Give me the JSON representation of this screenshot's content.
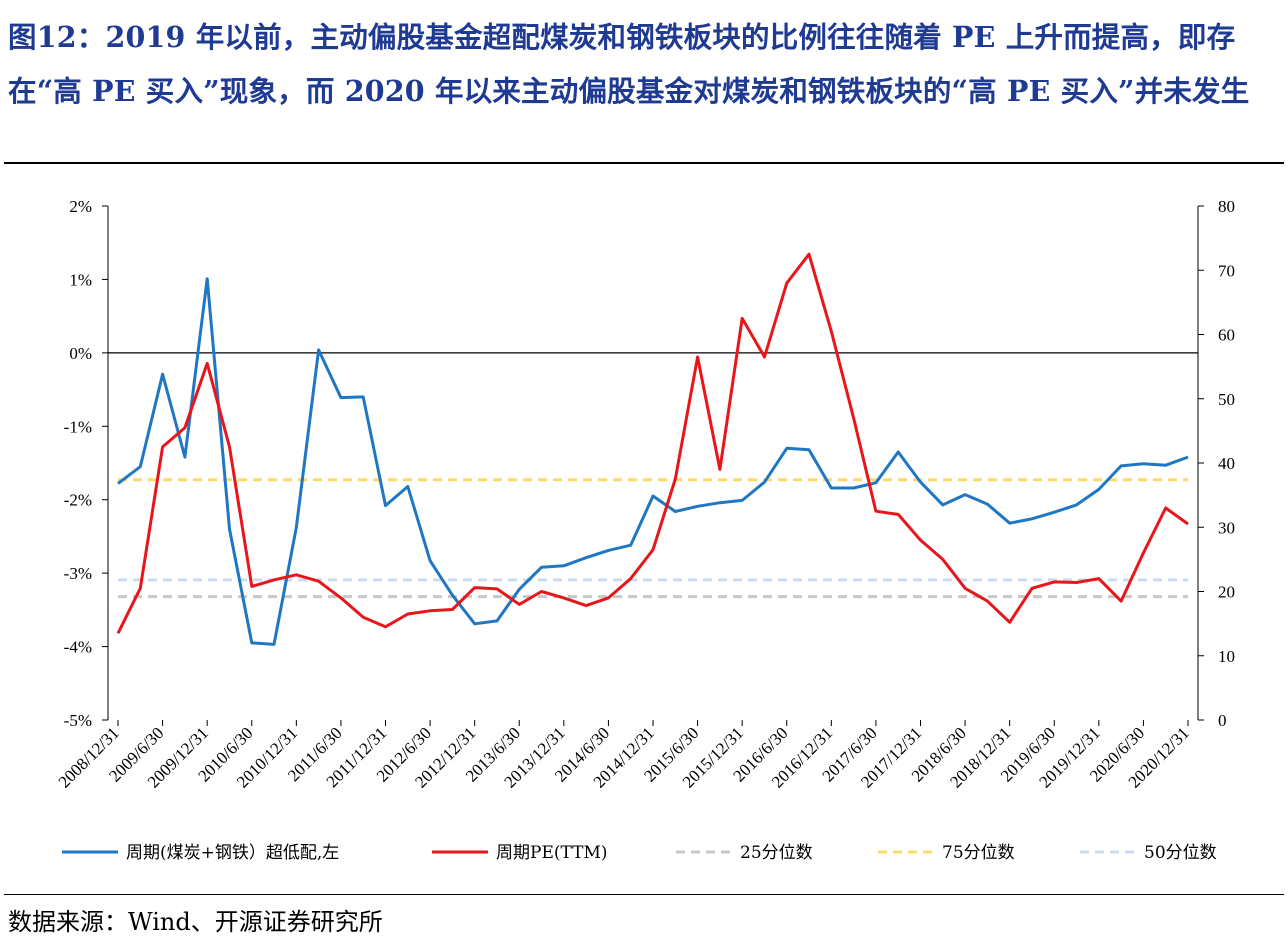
{
  "title": "图12：2019 年以前，主动偏股基金超配煤炭和钢铁板块的比例往往随着 PE 上升而提高，即存在“高 PE 买入”现象，而 2020 年以来主动偏股基金对煤炭和钢铁板块的“高 PE 买入”并未发生",
  "source": "数据来源：Wind、开源证券研究所",
  "chart_data": {
    "type": "line",
    "x_tick_labels": [
      "2008/12/31",
      "2009/6/30",
      "2009/12/31",
      "2010/6/30",
      "2010/12/31",
      "2011/6/30",
      "2011/12/31",
      "2012/6/30",
      "2012/12/31",
      "2013/6/30",
      "2013/12/31",
      "2014/6/30",
      "2014/12/31",
      "2015/6/30",
      "2015/12/31",
      "2016/6/30",
      "2016/12/31",
      "2017/6/30",
      "2017/12/31",
      "2018/6/30",
      "2018/12/31",
      "2019/6/30",
      "2019/12/31",
      "2020/6/30",
      "2020/12/31"
    ],
    "y_left": {
      "ticks": [
        "2%",
        "1%",
        "0%",
        "-1%",
        "-2%",
        "-3%",
        "-4%",
        "-5%"
      ],
      "range": [
        -5,
        2
      ]
    },
    "y_right": {
      "ticks": [
        "80",
        "70",
        "60",
        "50",
        "40",
        "30",
        "20",
        "10",
        "0"
      ],
      "range": [
        0,
        80
      ]
    },
    "series": [
      {
        "name": "周期(煤炭+钢铁）超低配,左",
        "axis": "left",
        "color": "#1f77c4",
        "style": "solid",
        "values": [
          -1.78,
          -1.55,
          -0.29,
          -1.42,
          1.01,
          -2.4,
          -3.95,
          -3.97,
          -2.38,
          0.04,
          -0.61,
          -0.6,
          -2.08,
          -1.82,
          -2.83,
          -3.3,
          -3.69,
          -3.65,
          -3.22,
          -2.92,
          -2.9,
          -2.79,
          -2.69,
          -2.62,
          -1.95,
          -2.16,
          -2.09,
          -2.04,
          -2.01,
          -1.76,
          -1.3,
          -1.32,
          -1.84,
          -1.84,
          -1.77,
          -1.35,
          -1.76,
          -2.07,
          -1.93,
          -2.06,
          -2.32,
          -2.26,
          -2.17,
          -2.07,
          -1.86,
          -1.54,
          -1.51,
          -1.53,
          -1.42
        ]
      },
      {
        "name": "周期PE(TTM)",
        "axis": "right",
        "color": "#e8161b",
        "style": "solid",
        "values": [
          13.5,
          20.5,
          42.5,
          45.5,
          55.5,
          42.5,
          20.8,
          21.8,
          22.6,
          21.6,
          19.0,
          16.0,
          14.5,
          16.5,
          17.0,
          17.2,
          20.6,
          20.4,
          18.0,
          20.0,
          19.0,
          17.8,
          19.0,
          22.0,
          26.5,
          37.5,
          56.5,
          39.0,
          62.5,
          56.5,
          68.0,
          72.5,
          60.5,
          47.0,
          32.5,
          32.0,
          28.0,
          25.0,
          20.5,
          18.5,
          15.2,
          20.5,
          21.5,
          21.4,
          22.0,
          18.5,
          26.0,
          33.0,
          30.5
        ]
      },
      {
        "name": "25分位数",
        "axis": "right",
        "color": "#c8c8c8",
        "style": "dashed",
        "values": [
          19.2
        ]
      },
      {
        "name": "75分位数",
        "axis": "right",
        "color": "#ffd966",
        "style": "dashed",
        "values": [
          37.4
        ]
      },
      {
        "name": "50分位数",
        "axis": "right",
        "color": "#c9dcef",
        "style": "dashed",
        "values": [
          21.8
        ]
      }
    ]
  }
}
